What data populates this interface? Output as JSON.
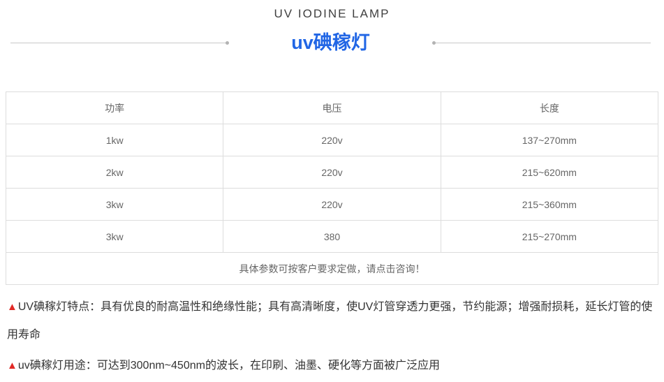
{
  "header": {
    "subtitle": "UV IODINE LAMP",
    "title": "uv碘稼灯"
  },
  "table": {
    "columns": [
      "功率",
      "电压",
      "长度"
    ],
    "rows": [
      [
        "1kw",
        "220v",
        "137~270mm"
      ],
      [
        "2kw",
        "220v",
        "215~620mm"
      ],
      [
        "3kw",
        "220v",
        "215~360mm"
      ],
      [
        "3kw",
        "380",
        "215~270mm"
      ]
    ],
    "footer_note": "具体参数可按客户要求定做，请点击咨询！"
  },
  "notes": [
    {
      "marker": "▲",
      "text": "UV碘稼灯特点：具有优良的耐高温性和绝缘性能；具有高清晰度，使UV灯管穿透力更强，节约能源；增强耐损耗，延长灯管的使用寿命"
    },
    {
      "marker": "▲",
      "text": "uv碘稼灯用途：可达到300nm~450nm的波长，在印刷、油墨、硬化等方面被广泛应用"
    }
  ],
  "colors": {
    "accent_blue": "#2166e5",
    "marker_red": "#e12a26",
    "table_border": "#dddddd",
    "cell_text": "#666666",
    "body_text": "#333333"
  }
}
